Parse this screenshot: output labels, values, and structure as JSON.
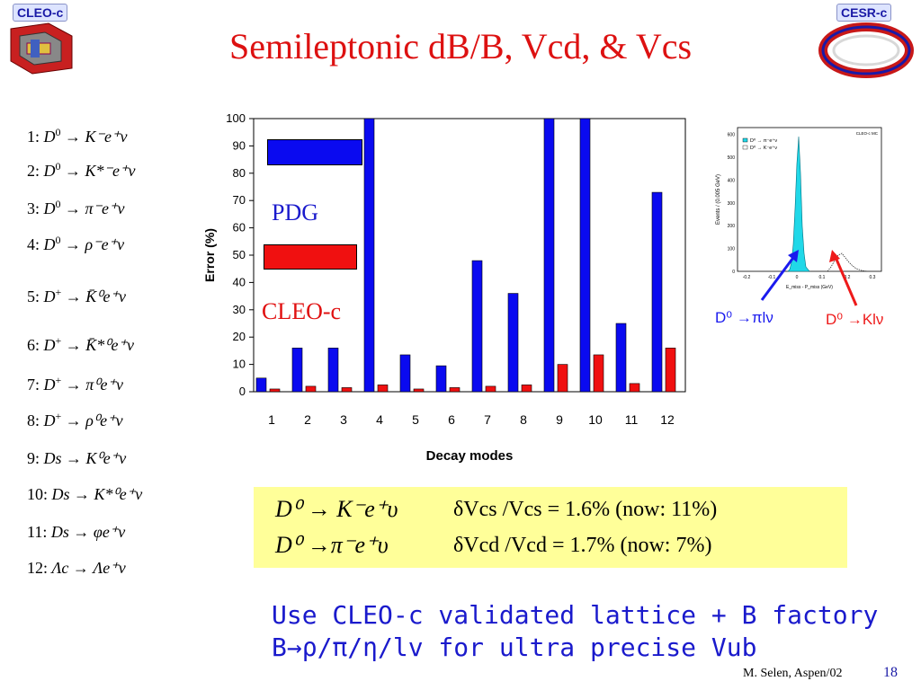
{
  "header": {
    "left_logo_label": "CLEO-c",
    "right_logo_label": "CESR-c",
    "title": "Semileptonic dB/B, Vcd, & Vcs"
  },
  "decay_modes": [
    {
      "n": "1",
      "sep": ":",
      "parent": "D",
      "sup": "0",
      "arrow": "→",
      "products": "K⁻e⁺ν"
    },
    {
      "n": "2",
      "sep": ":",
      "parent": "D",
      "sup": "0",
      "arrow": "→",
      "products": "K*⁻e⁺ν"
    },
    {
      "n": "3",
      "sep": ":",
      "parent": "D",
      "sup": "0",
      "arrow": "→",
      "products": "π⁻e⁺ν"
    },
    {
      "n": "4",
      "sep": ":",
      "parent": "D",
      "sup": "0",
      "arrow": "→",
      "products": "ρ⁻e⁺ν"
    },
    {
      "n": "5",
      "sep": ":",
      "parent": "D",
      "sup": "+",
      "arrow": "→",
      "products": "K̄⁰e⁺ν"
    },
    {
      "n": "6",
      "sep": ":",
      "parent": "D",
      "sup": "+",
      "arrow": "→",
      "products": "K̄*⁰e⁺ν"
    },
    {
      "n": "7",
      "sep": ":",
      "parent": "D",
      "sup": "+",
      "arrow": "→",
      "products": "π⁰e⁺ν"
    },
    {
      "n": "8",
      "sep": ":",
      "parent": "D",
      "sup": "+",
      "arrow": "→",
      "products": "ρ⁰e⁺ν"
    },
    {
      "n": "9",
      "sep": ":",
      "parent": "Ds",
      "sup": "",
      "arrow": "→",
      "products": "K⁰e⁺ν"
    },
    {
      "n": "10",
      "sep": ":",
      "parent": "Ds",
      "sup": "",
      "arrow": "→",
      "products": "K*⁰e⁺ν"
    },
    {
      "n": "11",
      "sep": ":",
      "parent": "Ds",
      "sup": "",
      "arrow": "→",
      "products": "φe⁺ν"
    },
    {
      "n": "12",
      "sep": ":",
      "parent": "Λc",
      "sup": "",
      "arrow": "→",
      "products": "Λe⁺ν"
    }
  ],
  "legend": {
    "pdg": "PDG",
    "cleo": "CLEO-c",
    "pdg_color": "#0a0af0",
    "cleo_color": "#f01010"
  },
  "chart_data": {
    "type": "bar",
    "categories": [
      "1",
      "2",
      "3",
      "4",
      "5",
      "6",
      "7",
      "8",
      "9",
      "10",
      "11",
      "12"
    ],
    "series": [
      {
        "name": "PDG",
        "color": "#0a0af0",
        "values": [
          5,
          16,
          16,
          100,
          13.5,
          9.5,
          48,
          36,
          100,
          100,
          25,
          73
        ]
      },
      {
        "name": "CLEO-c",
        "color": "#f01010",
        "values": [
          1,
          2,
          1.5,
          2.5,
          1,
          1.5,
          2,
          2.5,
          10,
          13.5,
          3,
          16
        ]
      }
    ],
    "xlabel": "Decay modes",
    "ylabel": "Error (%)",
    "ylim": [
      0,
      100
    ],
    "yticks": [
      0,
      10,
      20,
      30,
      40,
      50,
      60,
      70,
      80,
      90,
      100
    ]
  },
  "inset": {
    "ylabel": "Events / (0.005 GeV)",
    "xlabel": "E_miss - P_miss (GeV)",
    "legend_1": "D⁰ → π⁻e⁺ν",
    "legend_2": "D⁰ → K⁻e⁺ν",
    "corner": "CLEO-c MC",
    "yticks": [
      "0",
      "100",
      "200",
      "300",
      "400",
      "500",
      "600"
    ],
    "xticks": [
      "-0.2",
      "-0.1",
      "0",
      "0.1",
      "0.2",
      "0.3"
    ]
  },
  "arrow_labels": {
    "pi": "D⁰ →πlν",
    "k": "D⁰ →Klν"
  },
  "results": {
    "line1_formula": "D⁰ → K⁻e⁺υ",
    "line1_text": "δVcs /Vcs = 1.6%  (now: 11%)",
    "line2_formula": "D⁰ →π⁻e⁺υ",
    "line2_text": "δVcd /Vcd = 1.7%  (now: 7%)"
  },
  "note": {
    "line1": "Use CLEO-c validated lattice + B factory",
    "line2": "B→ρ/π/η/lv  for ultra precise Vub"
  },
  "footer": {
    "author": "M. Selen, Aspen/02",
    "page": "18"
  }
}
